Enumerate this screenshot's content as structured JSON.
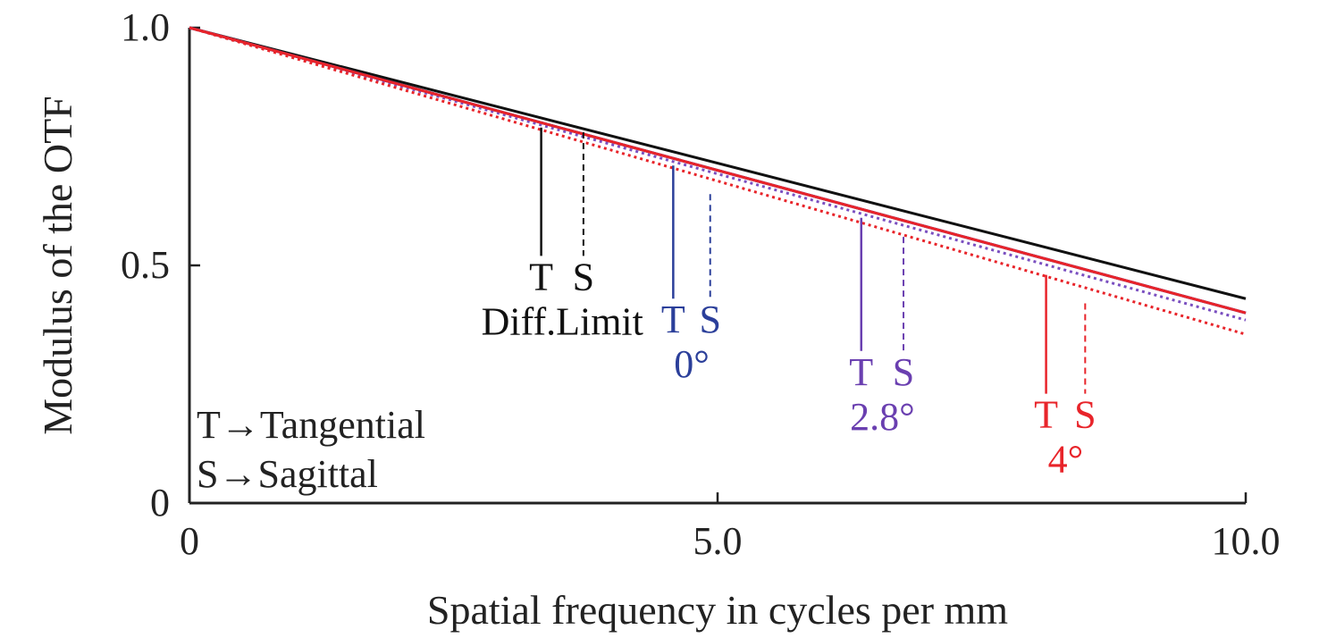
{
  "chart_data": {
    "type": "line",
    "xlabel": "Spatial frequency in cycles per mm",
    "ylabel": "Modulus of the OTF",
    "xlim": [
      0,
      10
    ],
    "ylim": [
      0,
      1
    ],
    "x_ticks": [
      {
        "value": 0,
        "label": "0"
      },
      {
        "value": 5,
        "label": "5.0"
      },
      {
        "value": 10,
        "label": "10.0"
      }
    ],
    "y_ticks": [
      {
        "value": 0,
        "label": "0"
      },
      {
        "value": 0.5,
        "label": "0.5"
      },
      {
        "value": 1,
        "label": "1.0"
      }
    ],
    "grid": false,
    "series": [
      {
        "name": "Diff.Limit T",
        "color": "#111111",
        "style": "solid",
        "x": [
          0,
          10
        ],
        "y": [
          1.0,
          0.43
        ]
      },
      {
        "name": "0° T",
        "color": "#2b3f9a",
        "style": "solid",
        "x": [
          0,
          10
        ],
        "y": [
          1.0,
          0.4
        ]
      },
      {
        "name": "0° S",
        "color": "#2b3f9a",
        "style": "dashed",
        "x": [
          0,
          10
        ],
        "y": [
          1.0,
          0.4
        ]
      },
      {
        "name": "2.8° T",
        "color": "#6a3fb0",
        "style": "solid",
        "x": [
          0,
          10
        ],
        "y": [
          1.0,
          0.4
        ]
      },
      {
        "name": "2.8° S",
        "color": "#7a4fc0",
        "style": "dotted",
        "x": [
          0,
          10
        ],
        "y": [
          1.0,
          0.385
        ]
      },
      {
        "name": "4° T",
        "color": "#e8242a",
        "style": "solid",
        "x": [
          0,
          10
        ],
        "y": [
          1.0,
          0.4
        ]
      },
      {
        "name": "4° S",
        "color": "#e8242a",
        "style": "dotted",
        "x": [
          0,
          10
        ],
        "y": [
          1.0,
          0.355
        ]
      }
    ],
    "annotations": [
      {
        "id": "difflimit",
        "color": "#111111",
        "t_label": "T",
        "s_label": "S",
        "group_label": "Diff.Limit",
        "t_x": 3.33,
        "t_y": [
          0.79,
          0.52
        ],
        "s_x": 3.73,
        "s_y": [
          0.78,
          0.52
        ]
      },
      {
        "id": "deg0",
        "color": "#2b3f9a",
        "t_label": "T",
        "s_label": "S",
        "group_label": "0°",
        "t_x": 4.58,
        "t_y": [
          0.71,
          0.43
        ],
        "s_x": 4.93,
        "s_y": [
          0.65,
          0.43
        ]
      },
      {
        "id": "deg2_8",
        "color": "#6a3fb0",
        "t_label": "T",
        "s_label": "S",
        "group_label": "2.8°",
        "t_x": 6.36,
        "t_y": [
          0.6,
          0.32
        ],
        "s_x": 6.76,
        "s_y": [
          0.56,
          0.32
        ]
      },
      {
        "id": "deg4",
        "color": "#e8242a",
        "t_label": "T",
        "s_label": "S",
        "group_label": "4°",
        "t_x": 8.11,
        "t_y": [
          0.48,
          0.23
        ],
        "s_x": 8.48,
        "s_y": [
          0.42,
          0.23
        ]
      }
    ],
    "legend_notes": [
      "T→Tangential",
      "S→Sagittal"
    ]
  }
}
